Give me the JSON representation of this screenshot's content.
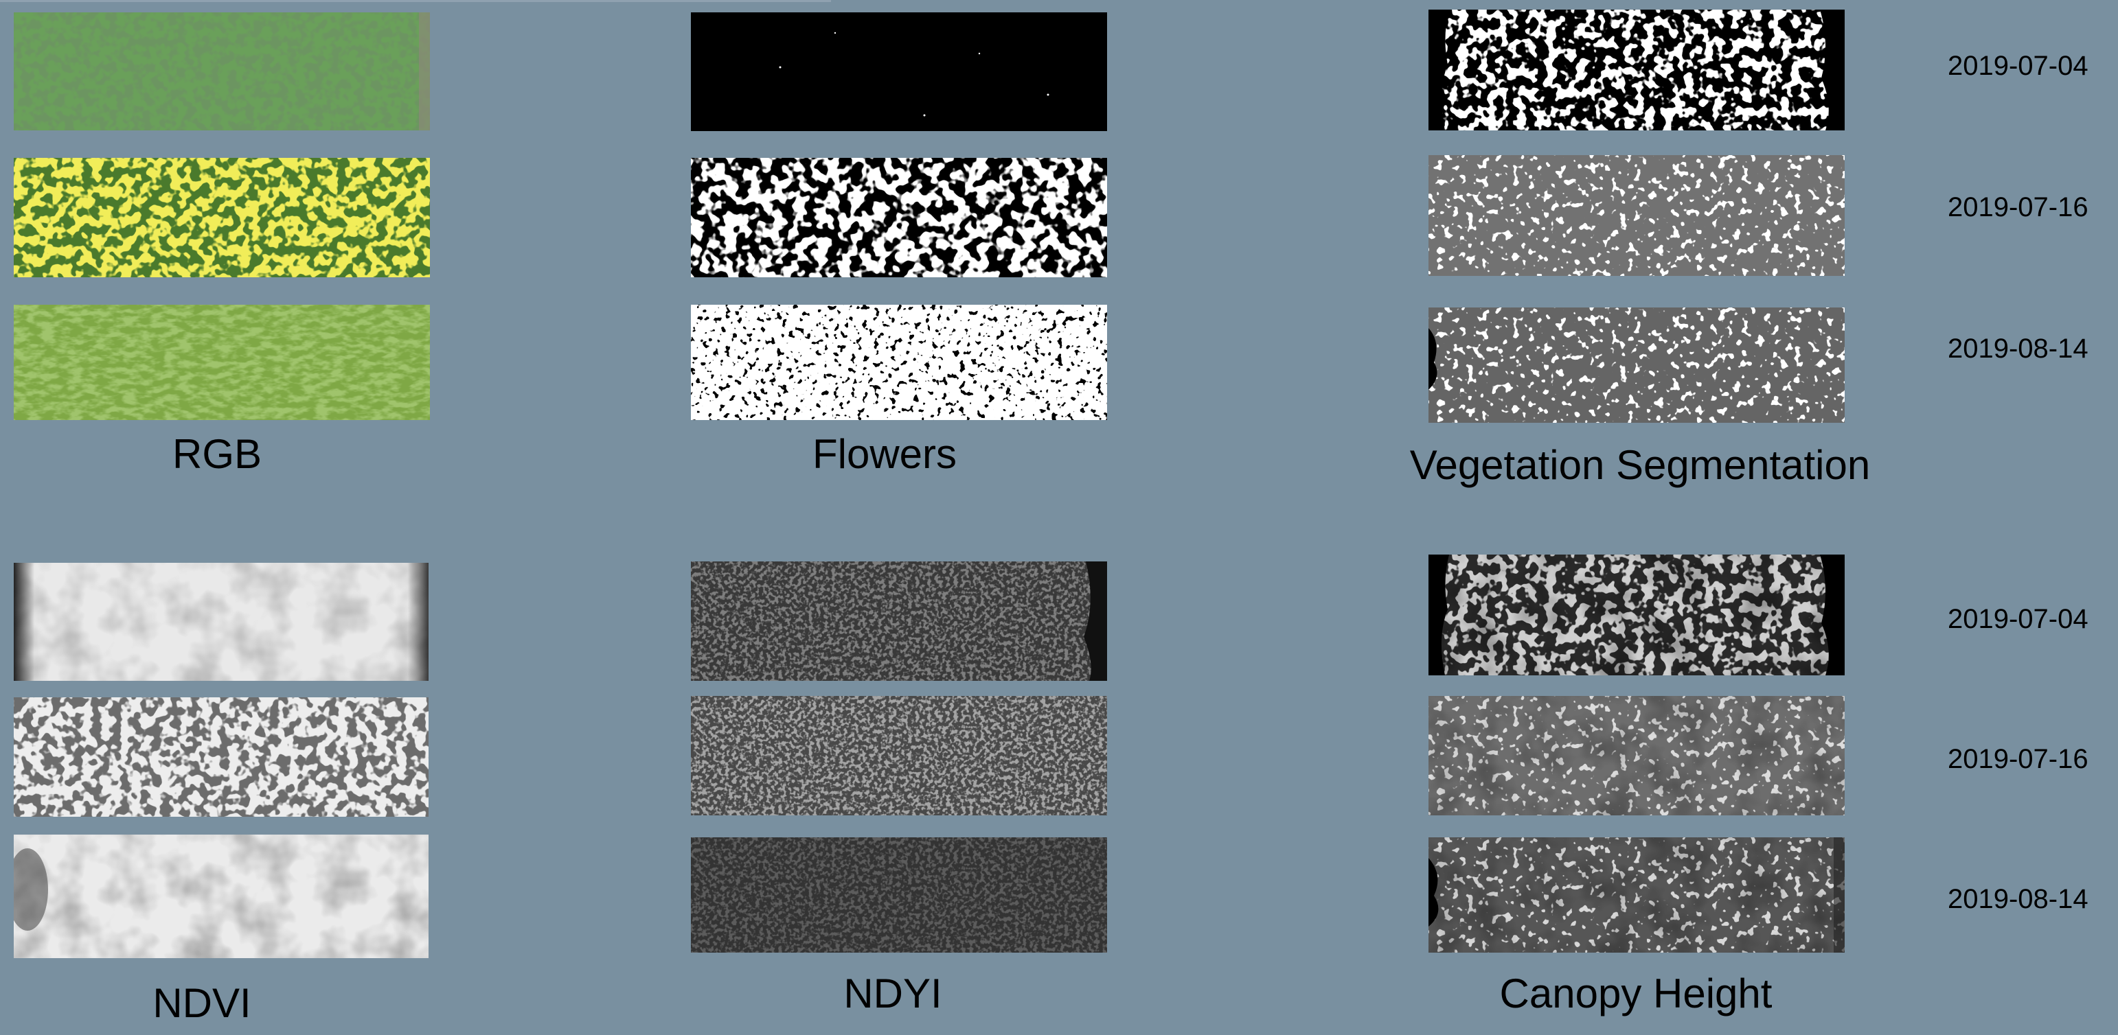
{
  "panels": {
    "rgb": {
      "title": "RGB"
    },
    "flowers": {
      "title": "Flowers"
    },
    "vegetation": {
      "title": "Vegetation Segmentation"
    },
    "ndvi": {
      "title": "NDVI"
    },
    "ndyi": {
      "title": "NDYI"
    },
    "canopy": {
      "title": "Canopy Height"
    }
  },
  "dates": {
    "top": [
      "2019-07-04",
      "2019-07-16",
      "2019-08-14"
    ],
    "bottom": [
      "2019-07-04",
      "2019-07-16",
      "2019-08-14"
    ]
  }
}
